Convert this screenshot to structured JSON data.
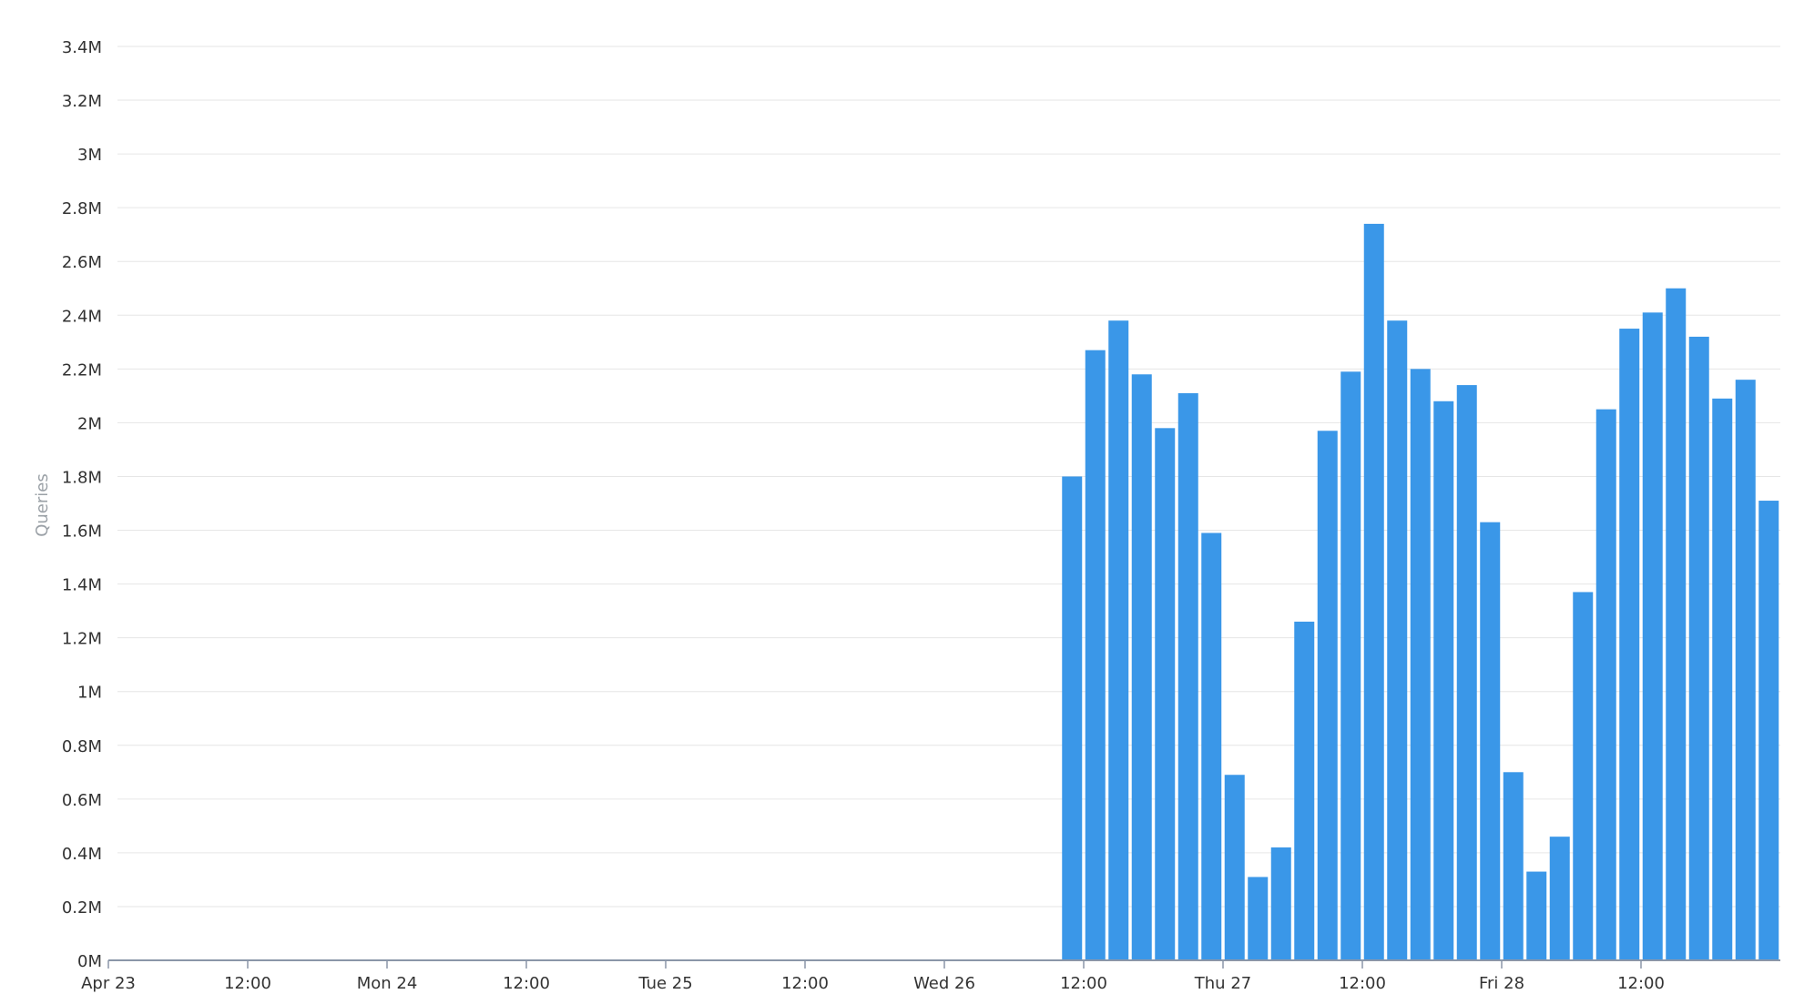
{
  "chart_data": {
    "type": "bar",
    "title": "",
    "xlabel": "",
    "ylabel": "Queries",
    "ylim": [
      0,
      3.4
    ],
    "yticks": [
      "0M",
      "0.2M",
      "0.4M",
      "0.6M",
      "0.8M",
      "1M",
      "1.2M",
      "1.4M",
      "1.6M",
      "1.8M",
      "2M",
      "2.2M",
      "2.4M",
      "2.6M",
      "2.8M",
      "3M",
      "3.2M",
      "3.4M"
    ],
    "xlim": [
      "2023-04-23 00:00",
      "2023-04-29 00:00"
    ],
    "xticks": [
      {
        "label": "Apr 23",
        "at": "2023-04-23 00:00"
      },
      {
        "label": "12:00",
        "at": "2023-04-23 12:00"
      },
      {
        "label": "Mon 24",
        "at": "2023-04-24 00:00"
      },
      {
        "label": "12:00",
        "at": "2023-04-24 12:00"
      },
      {
        "label": "Tue 25",
        "at": "2023-04-25 00:00"
      },
      {
        "label": "12:00",
        "at": "2023-04-25 12:00"
      },
      {
        "label": "Wed 26",
        "at": "2023-04-26 00:00"
      },
      {
        "label": "12:00",
        "at": "2023-04-26 12:00"
      },
      {
        "label": "Thu 27",
        "at": "2023-04-27 00:00"
      },
      {
        "label": "12:00",
        "at": "2023-04-27 12:00"
      },
      {
        "label": "Fri 28",
        "at": "2023-04-28 00:00"
      },
      {
        "label": "12:00",
        "at": "2023-04-28 12:00"
      }
    ],
    "grid": true,
    "bar_color": "#3a97e8",
    "series": [
      {
        "x": [
          "2023-04-26 11:00",
          "2023-04-26 13:00",
          "2023-04-26 15:00",
          "2023-04-26 17:00",
          "2023-04-26 19:00",
          "2023-04-26 21:00",
          "2023-04-26 23:00",
          "2023-04-27 01:00",
          "2023-04-27 03:00",
          "2023-04-27 05:00",
          "2023-04-27 07:00",
          "2023-04-27 09:00",
          "2023-04-27 11:00",
          "2023-04-27 13:00",
          "2023-04-27 15:00",
          "2023-04-27 17:00",
          "2023-04-27 19:00",
          "2023-04-27 21:00",
          "2023-04-27 23:00",
          "2023-04-28 01:00",
          "2023-04-28 03:00",
          "2023-04-28 05:00",
          "2023-04-28 07:00",
          "2023-04-28 09:00",
          "2023-04-28 11:00",
          "2023-04-28 13:00",
          "2023-04-28 15:00",
          "2023-04-28 17:00",
          "2023-04-28 19:00",
          "2023-04-28 21:00",
          "2023-04-28 23:00"
        ],
        "values": [
          1.8,
          2.27,
          2.38,
          2.18,
          1.98,
          2.11,
          1.59,
          0.69,
          0.31,
          0.42,
          1.26,
          1.97,
          2.19,
          2.74,
          2.38,
          2.2,
          2.08,
          2.14,
          1.63,
          0.7,
          0.33,
          0.46,
          1.37,
          2.05,
          2.35,
          2.41,
          2.5,
          2.32,
          2.09,
          2.16,
          1.71
        ]
      }
    ]
  }
}
